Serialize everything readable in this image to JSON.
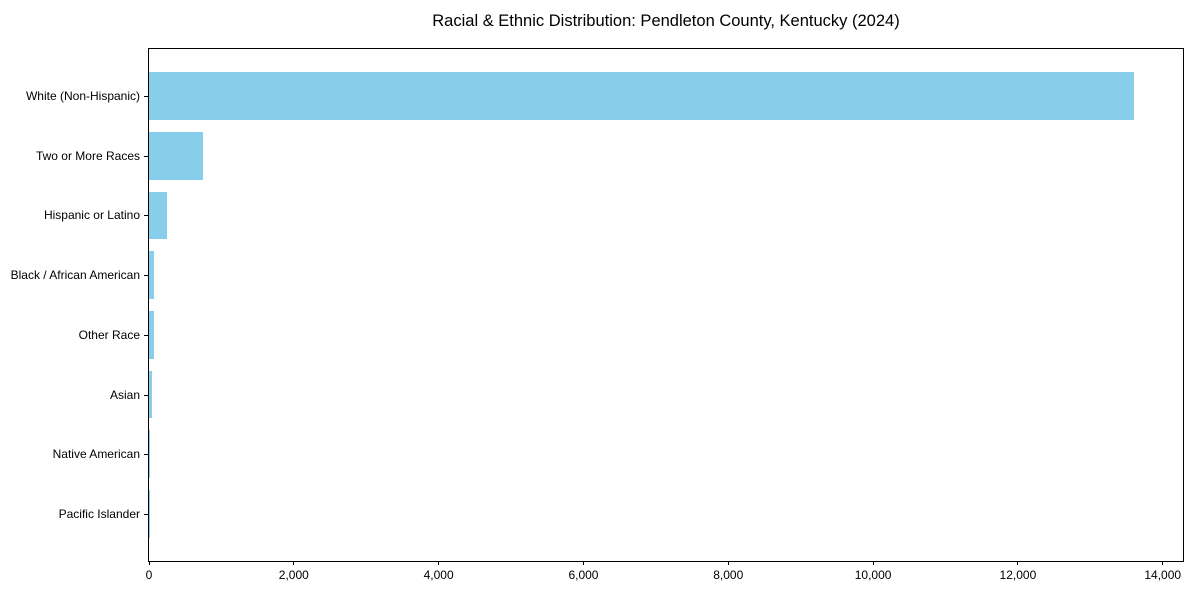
{
  "chart_data": {
    "type": "bar",
    "orientation": "horizontal",
    "title": "Racial & Ethnic Distribution: Pendleton County, Kentucky (2024)",
    "categories": [
      "White (Non-Hispanic)",
      "Two or More Races",
      "Hispanic or Latino",
      "Black / African American",
      "Other Race",
      "Asian",
      "Native American",
      "Pacific Islander"
    ],
    "values": [
      13600,
      745,
      250,
      70,
      65,
      45,
      15,
      5
    ],
    "bar_color": "#87CEEB",
    "xlabel": "",
    "ylabel": "",
    "xlim": [
      0,
      14280
    ],
    "xticks": [
      {
        "value": 0,
        "label": "0"
      },
      {
        "value": 2000,
        "label": "2,000"
      },
      {
        "value": 4000,
        "label": "4,000"
      },
      {
        "value": 6000,
        "label": "6,000"
      },
      {
        "value": 8000,
        "label": "8,000"
      },
      {
        "value": 10000,
        "label": "10,000"
      },
      {
        "value": 12000,
        "label": "12,000"
      },
      {
        "value": 14000,
        "label": "14,000"
      }
    ],
    "grid": false,
    "legend": null,
    "frame_color": "#000000",
    "background_color": "#ffffff"
  }
}
